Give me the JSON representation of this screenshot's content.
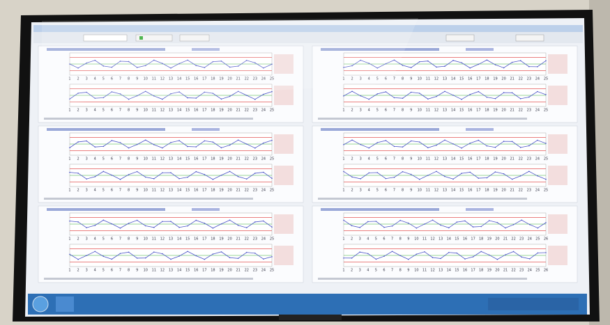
{
  "panels": [
    {
      "ticks": [
        1,
        2,
        3,
        4,
        5,
        6,
        7,
        8,
        9,
        10,
        11,
        12,
        13,
        14,
        15,
        16,
        17,
        18,
        19,
        20,
        21,
        22,
        23,
        24,
        25
      ]
    },
    {
      "ticks": [
        1,
        2,
        3,
        4,
        5,
        6,
        7,
        8,
        9,
        10,
        11,
        12,
        13,
        14,
        15,
        16,
        17,
        18,
        19,
        20,
        21,
        22,
        23,
        24,
        25
      ]
    },
    {
      "ticks": [
        1,
        2,
        3,
        4,
        5,
        6,
        7,
        8,
        9,
        10,
        11,
        12,
        13,
        14,
        15,
        16,
        17,
        18,
        19,
        20,
        21,
        22,
        23,
        24,
        25
      ]
    },
    {
      "ticks": [
        1,
        2,
        3,
        4,
        5,
        6,
        7,
        8,
        9,
        10,
        11,
        12,
        13,
        14,
        15,
        16,
        17,
        18,
        19,
        20,
        21,
        22,
        23,
        24,
        25
      ]
    },
    {
      "ticks": [
        1,
        2,
        3,
        4,
        5,
        6,
        7,
        8,
        9,
        10,
        11,
        12,
        13,
        14,
        15,
        16,
        17,
        18,
        19,
        20,
        21,
        22,
        23,
        24,
        25
      ]
    },
    {
      "ticks": [
        1,
        2,
        3,
        4,
        5,
        6,
        7,
        8,
        9,
        10,
        11,
        12,
        13,
        14,
        15,
        16,
        17,
        18,
        19,
        20,
        21,
        22,
        23,
        24,
        25,
        26
      ]
    }
  ]
}
